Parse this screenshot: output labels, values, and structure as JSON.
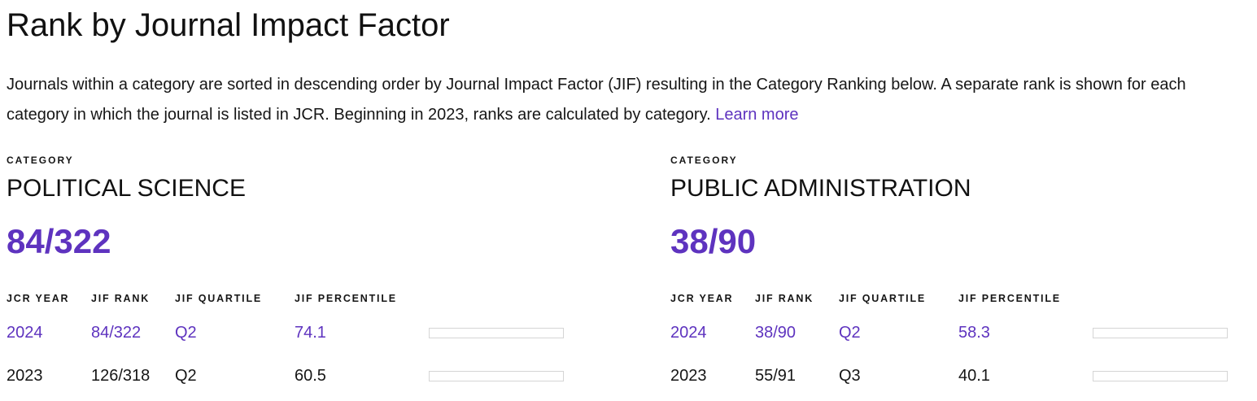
{
  "page": {
    "title": "Rank by Journal Impact Factor",
    "description": "Journals within a category are sorted in descending order by Journal Impact Factor (JIF) resulting in the Category Ranking below. A separate rank is shown for each category in which the journal is listed in JCR. Beginning in 2023, ranks are calculated by category.",
    "learn_more_label": "Learn more"
  },
  "colors": {
    "accent_purple_text": "#5E33BF",
    "bar_purple": "#5B2DB2",
    "bar_gray": "#D9D9D9",
    "bar_border": "#D5D5D5",
    "text_black": "#161616"
  },
  "table": {
    "headers": [
      "JCR YEAR",
      "JIF RANK",
      "JIF QUARTILE",
      "JIF PERCENTILE"
    ]
  },
  "categories": [
    {
      "label": "CATEGORY",
      "name": "POLITICAL SCIENCE",
      "rank": "84/322",
      "rows": [
        {
          "year": "2024",
          "rank": "84/322",
          "quartile": "Q2",
          "percentile": "74.1"
        },
        {
          "year": "2023",
          "rank": "126/318",
          "quartile": "Q2",
          "percentile": "60.5"
        }
      ]
    },
    {
      "label": "CATEGORY",
      "name": "PUBLIC ADMINISTRATION",
      "rank": "38/90",
      "rows": [
        {
          "year": "2024",
          "rank": "38/90",
          "quartile": "Q2",
          "percentile": "58.3"
        },
        {
          "year": "2023",
          "rank": "55/91",
          "quartile": "Q3",
          "percentile": "40.1"
        }
      ]
    }
  ]
}
